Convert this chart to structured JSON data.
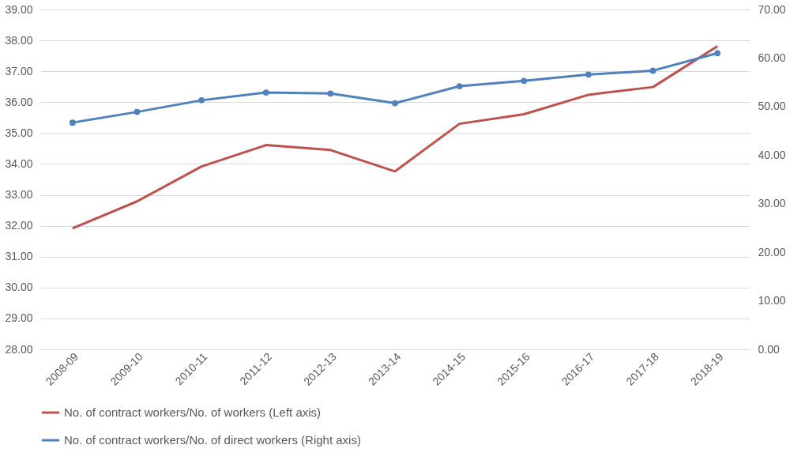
{
  "chart_data": {
    "type": "line",
    "categories": [
      "2008-09",
      "2009-10",
      "2010-11",
      "2011-12",
      "2012-13",
      "2013-14",
      "2014-15",
      "2015-16",
      "2016-17",
      "2017-18",
      "2018-19"
    ],
    "series": [
      {
        "name": "No. of contract workers/No. of workers (Left axis)",
        "color": "#c0504d",
        "marker": "none",
        "values": [
          31.92,
          32.79,
          33.92,
          34.61,
          34.45,
          33.76,
          35.3,
          35.61,
          36.24,
          36.49,
          37.81
        ]
      },
      {
        "name": "No. of contract workers/No. of direct workers (Right axis)",
        "color": "#4f81bd",
        "marker": "circle",
        "axis": "y2",
        "values": [
          46.7,
          48.9,
          51.3,
          52.9,
          52.7,
          50.7,
          54.2,
          55.3,
          56.6,
          57.4,
          61.0
        ]
      }
    ],
    "ylim": [
      28,
      39
    ],
    "yticks": [
      {
        "value": 28,
        "label": "28.00"
      },
      {
        "value": 29,
        "label": "29.00"
      },
      {
        "value": 30,
        "label": "30.00"
      },
      {
        "value": 31,
        "label": "31.00"
      },
      {
        "value": 32,
        "label": "32.00"
      },
      {
        "value": 33,
        "label": "33.00"
      },
      {
        "value": 34,
        "label": "34.00"
      },
      {
        "value": 35,
        "label": "35.00"
      },
      {
        "value": 36,
        "label": "36.00"
      },
      {
        "value": 37,
        "label": "37.00"
      },
      {
        "value": 38,
        "label": "38.00"
      },
      {
        "value": 39,
        "label": "39.00"
      }
    ],
    "y2lim": [
      0,
      70
    ],
    "y2ticks": [
      {
        "value": 0,
        "label": "0.00"
      },
      {
        "value": 10,
        "label": "10.00"
      },
      {
        "value": 20,
        "label": "20.00"
      },
      {
        "value": 30,
        "label": "30.00"
      },
      {
        "value": 40,
        "label": "40.00"
      },
      {
        "value": 50,
        "label": "50.00"
      },
      {
        "value": 60,
        "label": "60.00"
      },
      {
        "value": 70,
        "label": "70.00"
      }
    ],
    "grid": "y",
    "legend": "bottom",
    "line_style": "solid"
  }
}
